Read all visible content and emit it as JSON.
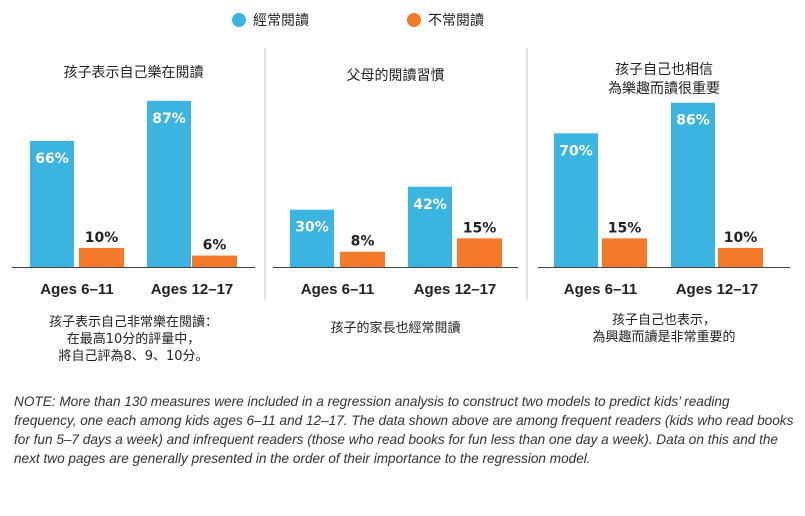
{
  "legend": {
    "frequent": {
      "label": "經常閱讀",
      "color": "#3cb4e0"
    },
    "infrequent": {
      "label": "不常閱讀",
      "color": "#f47b2b"
    }
  },
  "chart_data": [
    {
      "type": "bar",
      "title": "孩子表示自己樂在閱讀",
      "categories": [
        "Ages 6–11",
        "Ages 12–17"
      ],
      "series": [
        {
          "name": "經常閱讀",
          "values": [
            66,
            87
          ]
        },
        {
          "name": "不常閱讀",
          "values": [
            10,
            6
          ]
        }
      ],
      "value_labels": [
        [
          "66%",
          "87%"
        ],
        [
          "10%",
          "6%"
        ]
      ],
      "ylim": [
        0,
        100
      ],
      "caption": [
        "孩子表示自己非常樂在閱讀：",
        "在最高10分的評量中，",
        "將自己評為8、9、10分。"
      ]
    },
    {
      "type": "bar",
      "title": "父母的閱讀習慣",
      "categories": [
        "Ages 6–11",
        "Ages 12–17"
      ],
      "series": [
        {
          "name": "經常閱讀",
          "values": [
            30,
            42
          ]
        },
        {
          "name": "不常閱讀",
          "values": [
            8,
            15
          ]
        }
      ],
      "value_labels": [
        [
          "30%",
          "42%"
        ],
        [
          "8%",
          "15%"
        ]
      ],
      "ylim": [
        0,
        100
      ],
      "caption": [
        "孩子的家長也經常閱讀"
      ]
    },
    {
      "type": "bar",
      "title": [
        "孩子自己也相信",
        "為樂趣而讀很重要"
      ],
      "categories": [
        "Ages 6–11",
        "Ages 12–17"
      ],
      "series": [
        {
          "name": "經常閱讀",
          "values": [
            70,
            86
          ]
        },
        {
          "name": "不常閱讀",
          "values": [
            15,
            10
          ]
        }
      ],
      "value_labels": [
        [
          "70%",
          "86%"
        ],
        [
          "15%",
          "10%"
        ]
      ],
      "ylim": [
        0,
        100
      ],
      "caption": [
        "孩子自己也表示，",
        "為興趣而讀是非常重要的"
      ]
    }
  ],
  "note": "NOTE: More than 130 measures were included in a regression analysis to construct two models to predict kids’ reading frequency, one each among kids ages 6–11 and 12–17. The data shown above are among frequent readers (kids who read books for fun 5–7 days a week) and infrequent readers (those who read books for fun less than one day a week). Data on this and the next two pages are generally presented in the order of their importance to the regression model."
}
